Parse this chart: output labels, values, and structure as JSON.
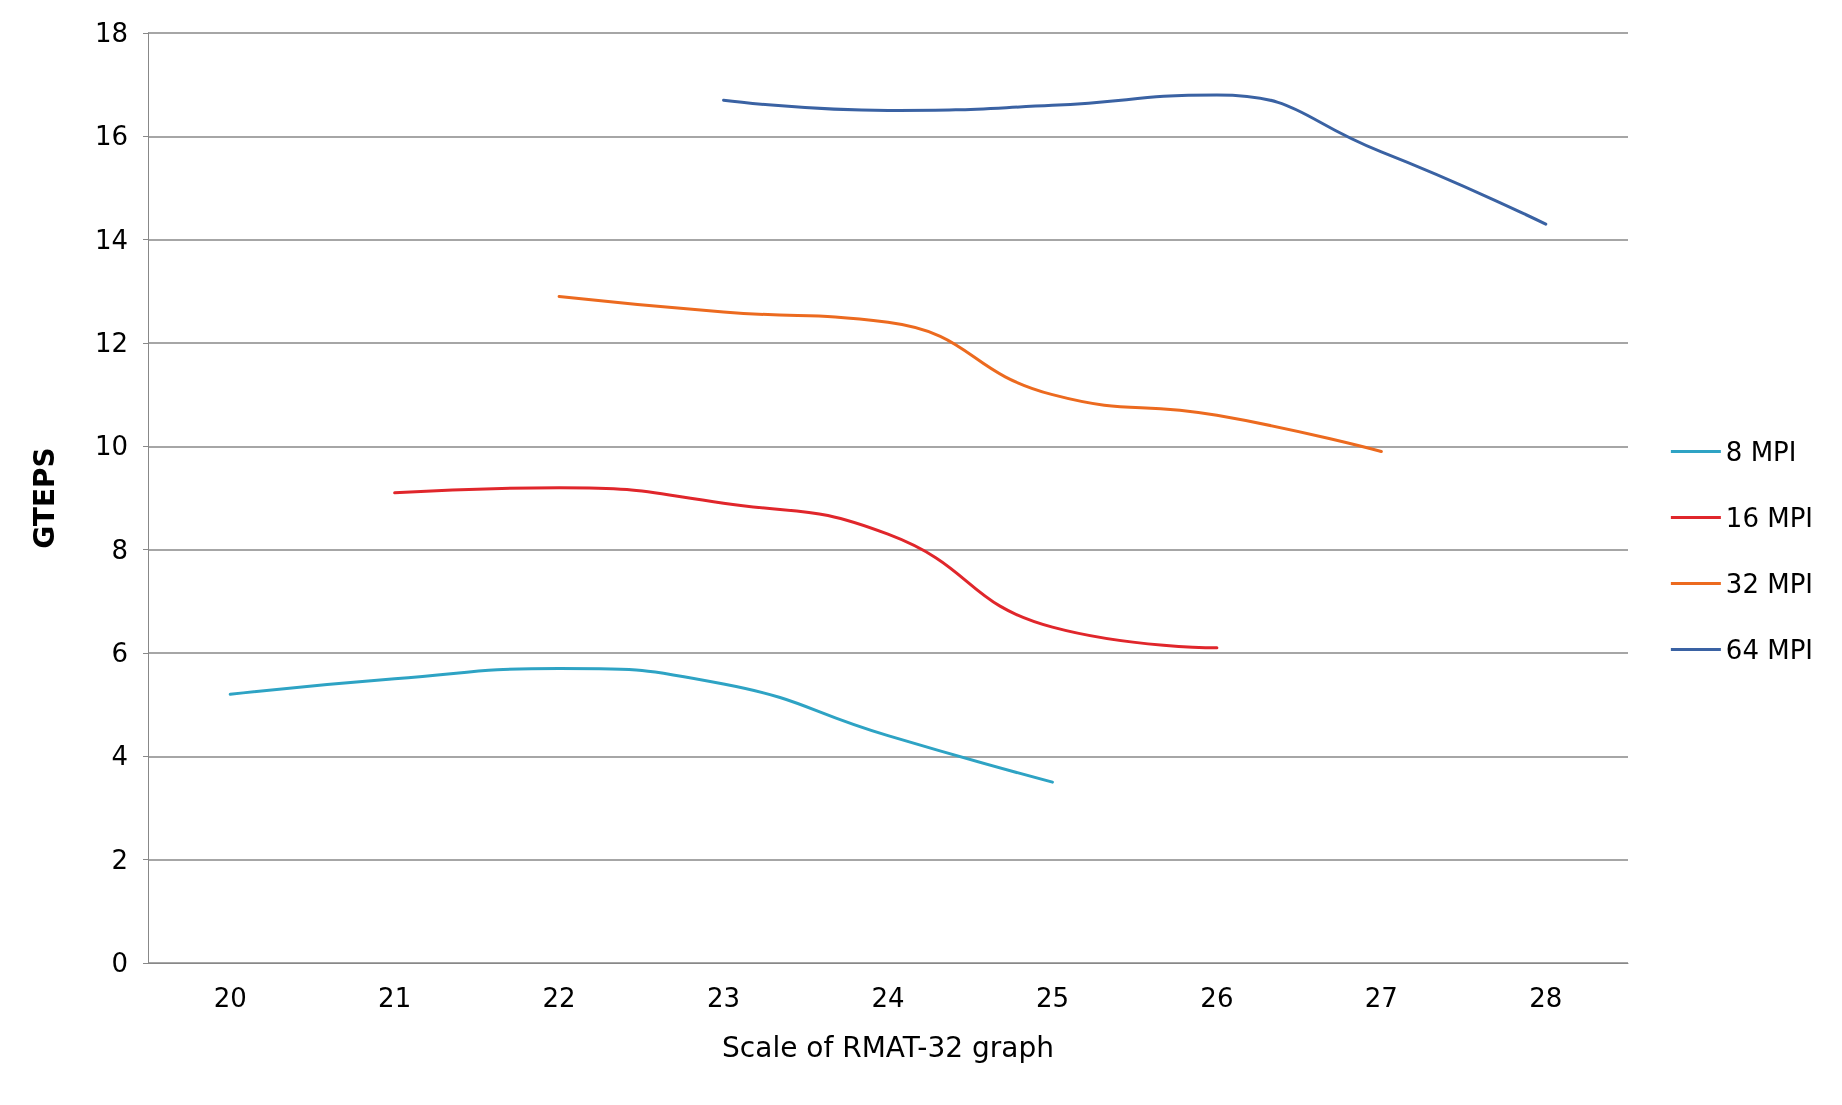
{
  "chart_data": {
    "type": "line",
    "xlabel": "Scale of RMAT-32 graph",
    "ylabel": "GTEPS",
    "categories": [
      "20",
      "21",
      "22",
      "23",
      "24",
      "25",
      "26",
      "27",
      "28"
    ],
    "series": [
      {
        "name": "8 MPI",
        "color": "#2ea3c4",
        "values": [
          5.2,
          5.5,
          5.7,
          5.4,
          4.4,
          3.5,
          null,
          null,
          null
        ]
      },
      {
        "name": "16 MPI",
        "color": "#e0262b",
        "values": [
          null,
          9.1,
          9.2,
          8.9,
          8.3,
          6.5,
          6.1,
          null,
          null
        ]
      },
      {
        "name": "32 MPI",
        "color": "#ec6a1f",
        "values": [
          null,
          null,
          12.9,
          12.6,
          12.4,
          11.0,
          10.6,
          9.9,
          null
        ]
      },
      {
        "name": "64 MPI",
        "color": "#3a62a3",
        "values": [
          null,
          null,
          null,
          16.7,
          16.5,
          16.6,
          16.8,
          15.7,
          14.3
        ]
      }
    ],
    "ylim": [
      0,
      18
    ],
    "yticks": [
      0,
      2,
      4,
      6,
      8,
      10,
      12,
      14,
      16,
      18
    ],
    "grid": "y",
    "legend": "right",
    "marker": "none",
    "line_style": "solid"
  }
}
